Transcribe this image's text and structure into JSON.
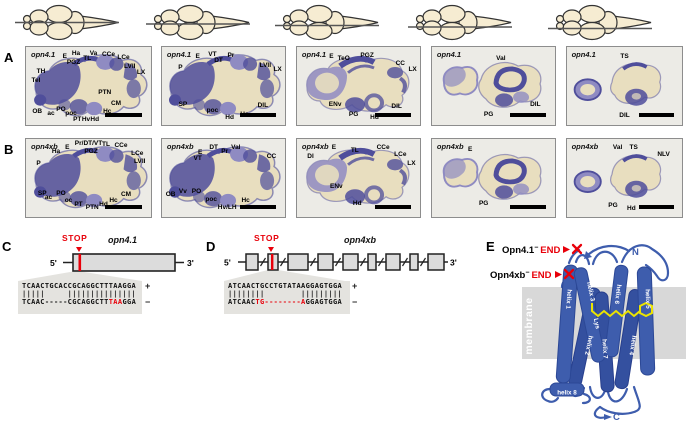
{
  "colors": {
    "stain_purple": "#4f4e9b",
    "stain_light": "#8f8bc2",
    "tissue_beige": "#e8debf",
    "panel_bg": "#ecebe6",
    "accent_red": "#e8000a",
    "protein_blue": "#3e5dad",
    "membrane_gray": "#d8d8d8",
    "retinal_yellow": "#ece400"
  },
  "schematics": {
    "count": 5,
    "section_line_offsets": [
      0,
      1.5,
      3,
      4.5,
      6
    ]
  },
  "rows": [
    {
      "letter": "A",
      "panels": [
        {
          "gene": "opn4.1",
          "variant": "v1",
          "labels": [
            {
              "t": "E",
              "x": 31,
              "y": 13
            },
            {
              "t": "Ha",
              "x": 40,
              "y": 9
            },
            {
              "t": "PGZ",
              "x": 38,
              "y": 20
            },
            {
              "t": "TL",
              "x": 49,
              "y": 16
            },
            {
              "t": "Va",
              "x": 54,
              "y": 9
            },
            {
              "t": "CCe",
              "x": 66,
              "y": 10
            },
            {
              "t": "LCe",
              "x": 78,
              "y": 14
            },
            {
              "t": "LVII",
              "x": 83,
              "y": 26
            },
            {
              "t": "LX",
              "x": 92,
              "y": 33
            },
            {
              "t": "TH",
              "x": 12,
              "y": 32
            },
            {
              "t": "Tel",
              "x": 8,
              "y": 43
            },
            {
              "t": "PTN",
              "x": 63,
              "y": 59
            },
            {
              "t": "CM",
              "x": 72,
              "y": 73
            },
            {
              "t": "Hc",
              "x": 65,
              "y": 83
            },
            {
              "t": "OB",
              "x": 9,
              "y": 83
            },
            {
              "t": "ac",
              "x": 20,
              "y": 86
            },
            {
              "t": "PO",
              "x": 28,
              "y": 81
            },
            {
              "t": "poc",
              "x": 36,
              "y": 86
            },
            {
              "t": "PT",
              "x": 41,
              "y": 93
            },
            {
              "t": "Hv",
              "x": 48,
              "y": 93
            },
            {
              "t": "Hd",
              "x": 55,
              "y": 93
            }
          ]
        },
        {
          "gene": "opn4.1",
          "variant": "v1",
          "labels": [
            {
              "t": "E",
              "x": 29,
              "y": 13
            },
            {
              "t": "VT",
              "x": 41,
              "y": 10
            },
            {
              "t": "DT",
              "x": 46,
              "y": 18
            },
            {
              "t": "Pr",
              "x": 56,
              "y": 11
            },
            {
              "t": "P",
              "x": 15,
              "y": 27
            },
            {
              "t": "LVII",
              "x": 84,
              "y": 24
            },
            {
              "t": "LX",
              "x": 94,
              "y": 30
            },
            {
              "t": "SP",
              "x": 17,
              "y": 74
            },
            {
              "t": "poc",
              "x": 41,
              "y": 82
            },
            {
              "t": "Hd",
              "x": 55,
              "y": 91
            },
            {
              "t": "Hc",
              "x": 67,
              "y": 87
            },
            {
              "t": "DIL",
              "x": 82,
              "y": 75
            }
          ]
        },
        {
          "gene": "opn4.1",
          "variant": "v2",
          "labels": [
            {
              "t": "E",
              "x": 28,
              "y": 13
            },
            {
              "t": "TeO",
              "x": 38,
              "y": 16
            },
            {
              "t": "PGZ",
              "x": 57,
              "y": 11
            },
            {
              "t": "CC",
              "x": 84,
              "y": 22
            },
            {
              "t": "LX",
              "x": 94,
              "y": 29
            },
            {
              "t": "ENv",
              "x": 31,
              "y": 74
            },
            {
              "t": "PG",
              "x": 46,
              "y": 87
            },
            {
              "t": "Hd",
              "x": 63,
              "y": 91
            },
            {
              "t": "DIL",
              "x": 81,
              "y": 77
            }
          ]
        },
        {
          "gene": "opn4.1",
          "variant": "v3",
          "labels": [
            {
              "t": "Val",
              "x": 56,
              "y": 15
            },
            {
              "t": "PG",
              "x": 46,
              "y": 87
            },
            {
              "t": "DIL",
              "x": 84,
              "y": 74
            }
          ]
        },
        {
          "gene": "opn4.1",
          "variant": "v4",
          "labels": [
            {
              "t": "TS",
              "x": 50,
              "y": 13
            },
            {
              "t": "DIL",
              "x": 50,
              "y": 88
            }
          ]
        }
      ]
    },
    {
      "letter": "B",
      "panels": [
        {
          "gene": "opn4xb",
          "variant": "v1",
          "labels": [
            {
              "t": "Ha",
              "x": 24,
              "y": 17
            },
            {
              "t": "E",
              "x": 33,
              "y": 12
            },
            {
              "t": "Pr/DT/VT",
              "x": 50,
              "y": 6
            },
            {
              "t": "PGZ",
              "x": 52,
              "y": 17
            },
            {
              "t": "TL",
              "x": 64,
              "y": 8
            },
            {
              "t": "CCe",
              "x": 76,
              "y": 9
            },
            {
              "t": "LCe",
              "x": 89,
              "y": 19
            },
            {
              "t": "LVII",
              "x": 91,
              "y": 30
            },
            {
              "t": "P",
              "x": 10,
              "y": 32
            },
            {
              "t": "SP",
              "x": 13,
              "y": 70
            },
            {
              "t": "ac",
              "x": 18,
              "y": 76
            },
            {
              "t": "PO",
              "x": 28,
              "y": 70
            },
            {
              "t": "oc",
              "x": 34,
              "y": 80
            },
            {
              "t": "PT",
              "x": 42,
              "y": 84
            },
            {
              "t": "PTN",
              "x": 53,
              "y": 88
            },
            {
              "t": "Hd",
              "x": 62,
              "y": 84
            },
            {
              "t": "Hc",
              "x": 70,
              "y": 80
            },
            {
              "t": "CM",
              "x": 80,
              "y": 72
            }
          ]
        },
        {
          "gene": "opn4xb",
          "variant": "v1",
          "labels": [
            {
              "t": "E",
              "x": 31,
              "y": 18
            },
            {
              "t": "DT",
              "x": 42,
              "y": 11
            },
            {
              "t": "Pr",
              "x": 51,
              "y": 17
            },
            {
              "t": "Val",
              "x": 60,
              "y": 11
            },
            {
              "t": "VT",
              "x": 29,
              "y": 25
            },
            {
              "t": "CC",
              "x": 89,
              "y": 23
            },
            {
              "t": "OB",
              "x": 7,
              "y": 72
            },
            {
              "t": "Vv",
              "x": 17,
              "y": 68
            },
            {
              "t": "PO",
              "x": 28,
              "y": 68
            },
            {
              "t": "poc",
              "x": 40,
              "y": 78
            },
            {
              "t": "Hv/LH",
              "x": 53,
              "y": 89
            },
            {
              "t": "Hc",
              "x": 68,
              "y": 80
            }
          ]
        },
        {
          "gene": "opn4xb",
          "variant": "v2",
          "labels": [
            {
              "t": "E",
              "x": 30,
              "y": 12
            },
            {
              "t": "TL",
              "x": 47,
              "y": 15
            },
            {
              "t": "CCe",
              "x": 70,
              "y": 12
            },
            {
              "t": "LCe",
              "x": 84,
              "y": 20
            },
            {
              "t": "LX",
              "x": 93,
              "y": 32
            },
            {
              "t": "Dl",
              "x": 11,
              "y": 23
            },
            {
              "t": "ENv",
              "x": 32,
              "y": 62
            },
            {
              "t": "Hd",
              "x": 49,
              "y": 83
            }
          ]
        },
        {
          "gene": "opn4xb",
          "variant": "v3",
          "labels": [
            {
              "t": "E",
              "x": 31,
              "y": 14
            },
            {
              "t": "PG",
              "x": 42,
              "y": 83
            }
          ]
        },
        {
          "gene": "opn4xb",
          "variant": "v4",
          "labels": [
            {
              "t": "Val",
              "x": 44,
              "y": 12
            },
            {
              "t": "TS",
              "x": 58,
              "y": 11
            },
            {
              "t": "NLV",
              "x": 84,
              "y": 21
            },
            {
              "t": "PG",
              "x": 40,
              "y": 86
            },
            {
              "t": "Hd",
              "x": 56,
              "y": 90
            }
          ]
        }
      ]
    },
    {
      "letter": "_IGNORE_",
      "panels": []
    }
  ],
  "panel_c": {
    "letter": "C",
    "stop": "STOP",
    "gene": "opn4.1",
    "five": "5'",
    "three": "3'",
    "seq_top": "TCAACTGCACCGCAGGCTTTAAGGA",
    "bars": "|||||     |||||||||||||||",
    "bottom_pre": "TCAAC-----CGCAGGCTT",
    "bottom_red": "TAA",
    "bottom_post": "GGA",
    "plus": "+",
    "minus": "−"
  },
  "panel_d": {
    "letter": "D",
    "stop": "STOP",
    "gene": "opn4xb",
    "five": "5'",
    "three": "3'",
    "exons": 9,
    "seq_top": "ATCAACTGCCTGTATAAGGAGTGGA",
    "bars": "||||||||        |||||||||",
    "bottom_pre": "ATCAAC",
    "bottom_red": "TG--------A",
    "bottom_post": "GGAGTGGA",
    "plus": "+",
    "minus": "−"
  },
  "panel_e": {
    "letter": "E",
    "mut1_name": "Opn4.1",
    "mut1_sup": "−",
    "mut1_end": "END",
    "mut2_name": "Opn4xb",
    "mut2_sup": "−",
    "mut2_end": "END",
    "n_term": "N",
    "c_term": "C",
    "membrane": "membrane",
    "lys": "Lys",
    "helix_labels": [
      "helix 1",
      "helix 2",
      "helix 3",
      "helix 4",
      "helix 5",
      "helix 6",
      "helix 7",
      "helix 8"
    ]
  }
}
